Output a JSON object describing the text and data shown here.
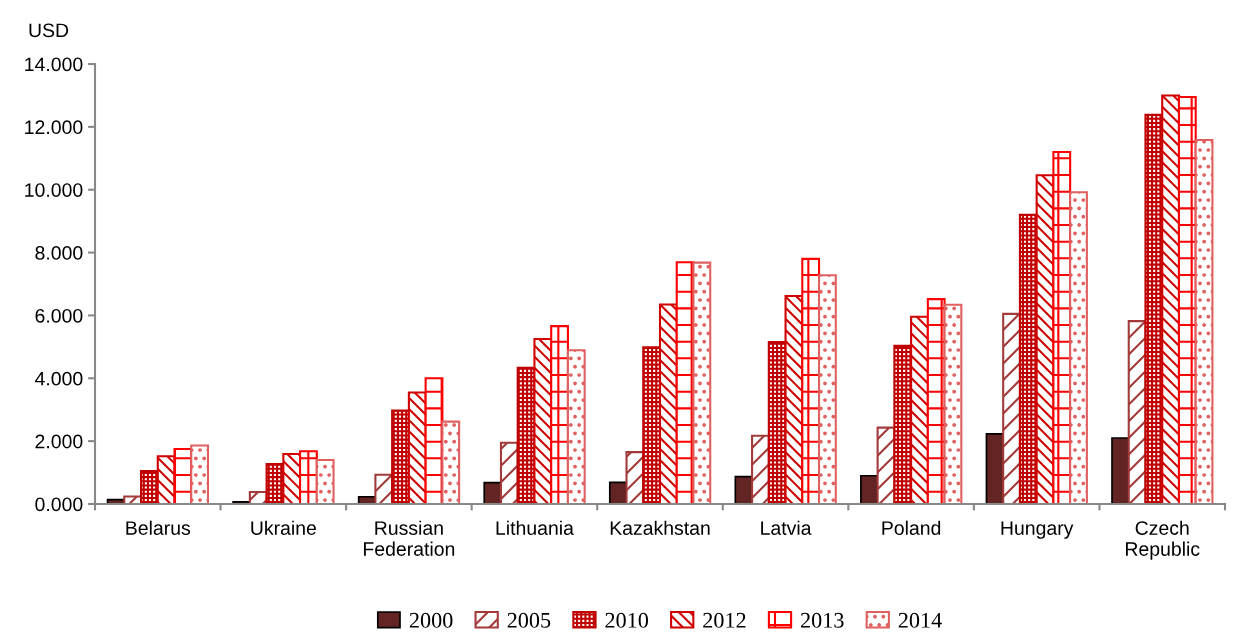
{
  "chart_data": {
    "type": "bar",
    "ylabel": "USD",
    "categories": [
      "Belarus",
      "Ukraine",
      "Russian\nFederation",
      "Lithuania",
      "Kazakhstan",
      "Latvia",
      "Poland",
      "Hungary",
      "Czech\nRepublic"
    ],
    "series": [
      {
        "name": "2000",
        "color": "#632523",
        "values": [
          0.14,
          0.07,
          0.23,
          0.68,
          0.69,
          0.87,
          0.9,
          2.23,
          2.1
        ]
      },
      {
        "name": "2005",
        "color": "#a33a3a",
        "values": [
          0.24,
          0.38,
          0.93,
          1.95,
          1.65,
          2.17,
          2.43,
          6.05,
          5.82
        ]
      },
      {
        "name": "2010",
        "color": "#c00000",
        "values": [
          1.05,
          1.27,
          2.97,
          4.33,
          4.99,
          5.15,
          5.03,
          9.2,
          12.38
        ]
      },
      {
        "name": "2012",
        "color": "#d00000",
        "values": [
          1.52,
          1.59,
          3.55,
          5.25,
          6.35,
          6.62,
          5.96,
          10.46,
          13.0
        ]
      },
      {
        "name": "2013",
        "color": "#ff0000",
        "values": [
          1.75,
          1.68,
          4.0,
          5.66,
          7.69,
          7.8,
          6.52,
          11.2,
          12.95
        ]
      },
      {
        "name": "2014",
        "color": "#e06060",
        "values": [
          1.86,
          1.4,
          2.62,
          4.89,
          7.68,
          7.28,
          6.34,
          9.92,
          11.58
        ]
      }
    ],
    "ylim": [
      0,
      14
    ],
    "yticks": [
      {
        "value": 0,
        "label": "0.000"
      },
      {
        "value": 2,
        "label": "2.000"
      },
      {
        "value": 4,
        "label": "4.000"
      },
      {
        "value": 6,
        "label": "6.000"
      },
      {
        "value": 8,
        "label": "8.000"
      },
      {
        "value": 10,
        "label": "10.000"
      },
      {
        "value": 12,
        "label": "12.000"
      },
      {
        "value": 14,
        "label": "14.000"
      }
    ],
    "grid": false,
    "legend": "bottom"
  }
}
